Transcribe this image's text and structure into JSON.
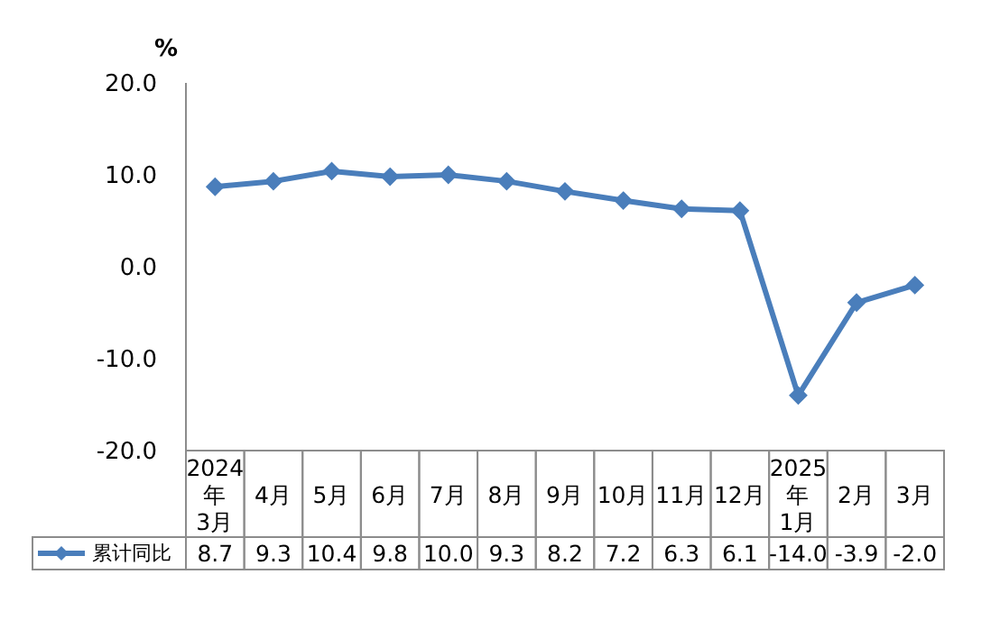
{
  "chart_data": {
    "type": "line",
    "ylabel": "%",
    "categories": [
      "2024年3月",
      "4月",
      "5月",
      "6月",
      "7月",
      "8月",
      "9月",
      "10月",
      "11月",
      "12月",
      "2025年1月",
      "2月",
      "3月"
    ],
    "series": [
      {
        "name": "累计同比",
        "color": "#4a7ebb",
        "values": [
          8.7,
          9.3,
          10.4,
          9.8,
          10.0,
          9.3,
          8.2,
          7.2,
          6.3,
          6.1,
          -14.0,
          -3.9,
          -2.0
        ],
        "value_labels": [
          "8.7",
          "9.3",
          "10.4",
          "9.8",
          "10.0",
          "9.3",
          "8.2",
          "7.2",
          "6.3",
          "6.1",
          "-14.0",
          "-3.9",
          "-2.0"
        ]
      }
    ],
    "ylim": [
      -20,
      20
    ],
    "yticks": [
      {
        "value": -20,
        "label": "-20.0"
      },
      {
        "value": -10,
        "label": "-10.0"
      },
      {
        "value": 0,
        "label": "0.0"
      },
      {
        "value": 10,
        "label": "10.0"
      },
      {
        "value": 20,
        "label": "20.0"
      }
    ],
    "grid": false,
    "legend": "bottom left",
    "marker": "diamond",
    "line_style": "solid"
  }
}
